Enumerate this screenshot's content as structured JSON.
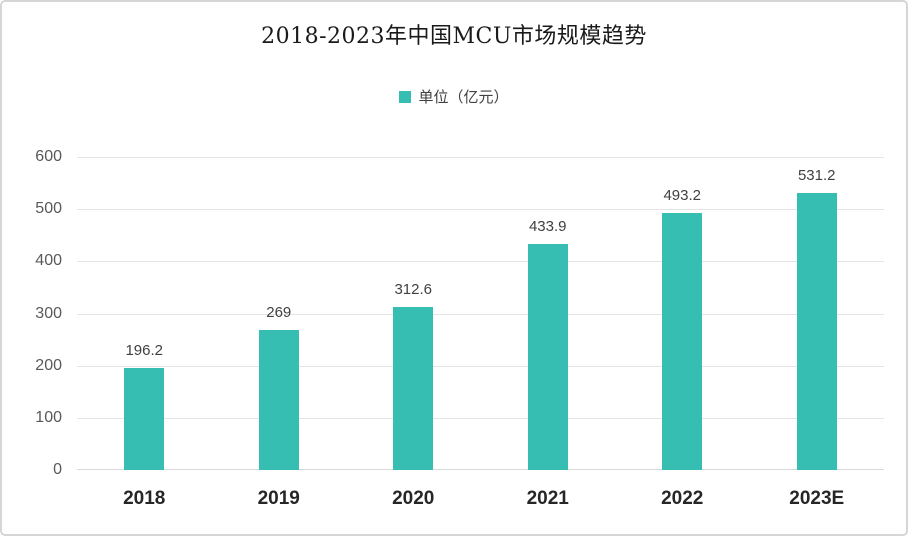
{
  "chart_data": {
    "type": "bar",
    "title": "2018-2023年中国MCU市场规模趋势",
    "legend": {
      "label": "单位（亿元）",
      "position": "top-center"
    },
    "categories": [
      "2018",
      "2019",
      "2020",
      "2021",
      "2022",
      "2023E"
    ],
    "values": [
      196.2,
      269,
      312.6,
      433.9,
      493.2,
      531.2
    ],
    "value_labels": [
      "196.2",
      "269",
      "312.6",
      "433.9",
      "493.2",
      "531.2"
    ],
    "xlabel": "",
    "ylabel": "",
    "ylim": [
      0,
      600
    ],
    "y_ticks": [
      0,
      100,
      200,
      300,
      400,
      500,
      600
    ],
    "grid": true,
    "colors": {
      "bar": "#35beb1",
      "legend_swatch": "#35beb1",
      "gridline": "#e4e4e4",
      "baseline": "#d9d9d9",
      "y_tick_text": "#595959",
      "value_label_text": "#404040",
      "x_label_text": "#262626",
      "title_text": "#1a1a1a",
      "frame_border": "#d6d6d6"
    }
  }
}
